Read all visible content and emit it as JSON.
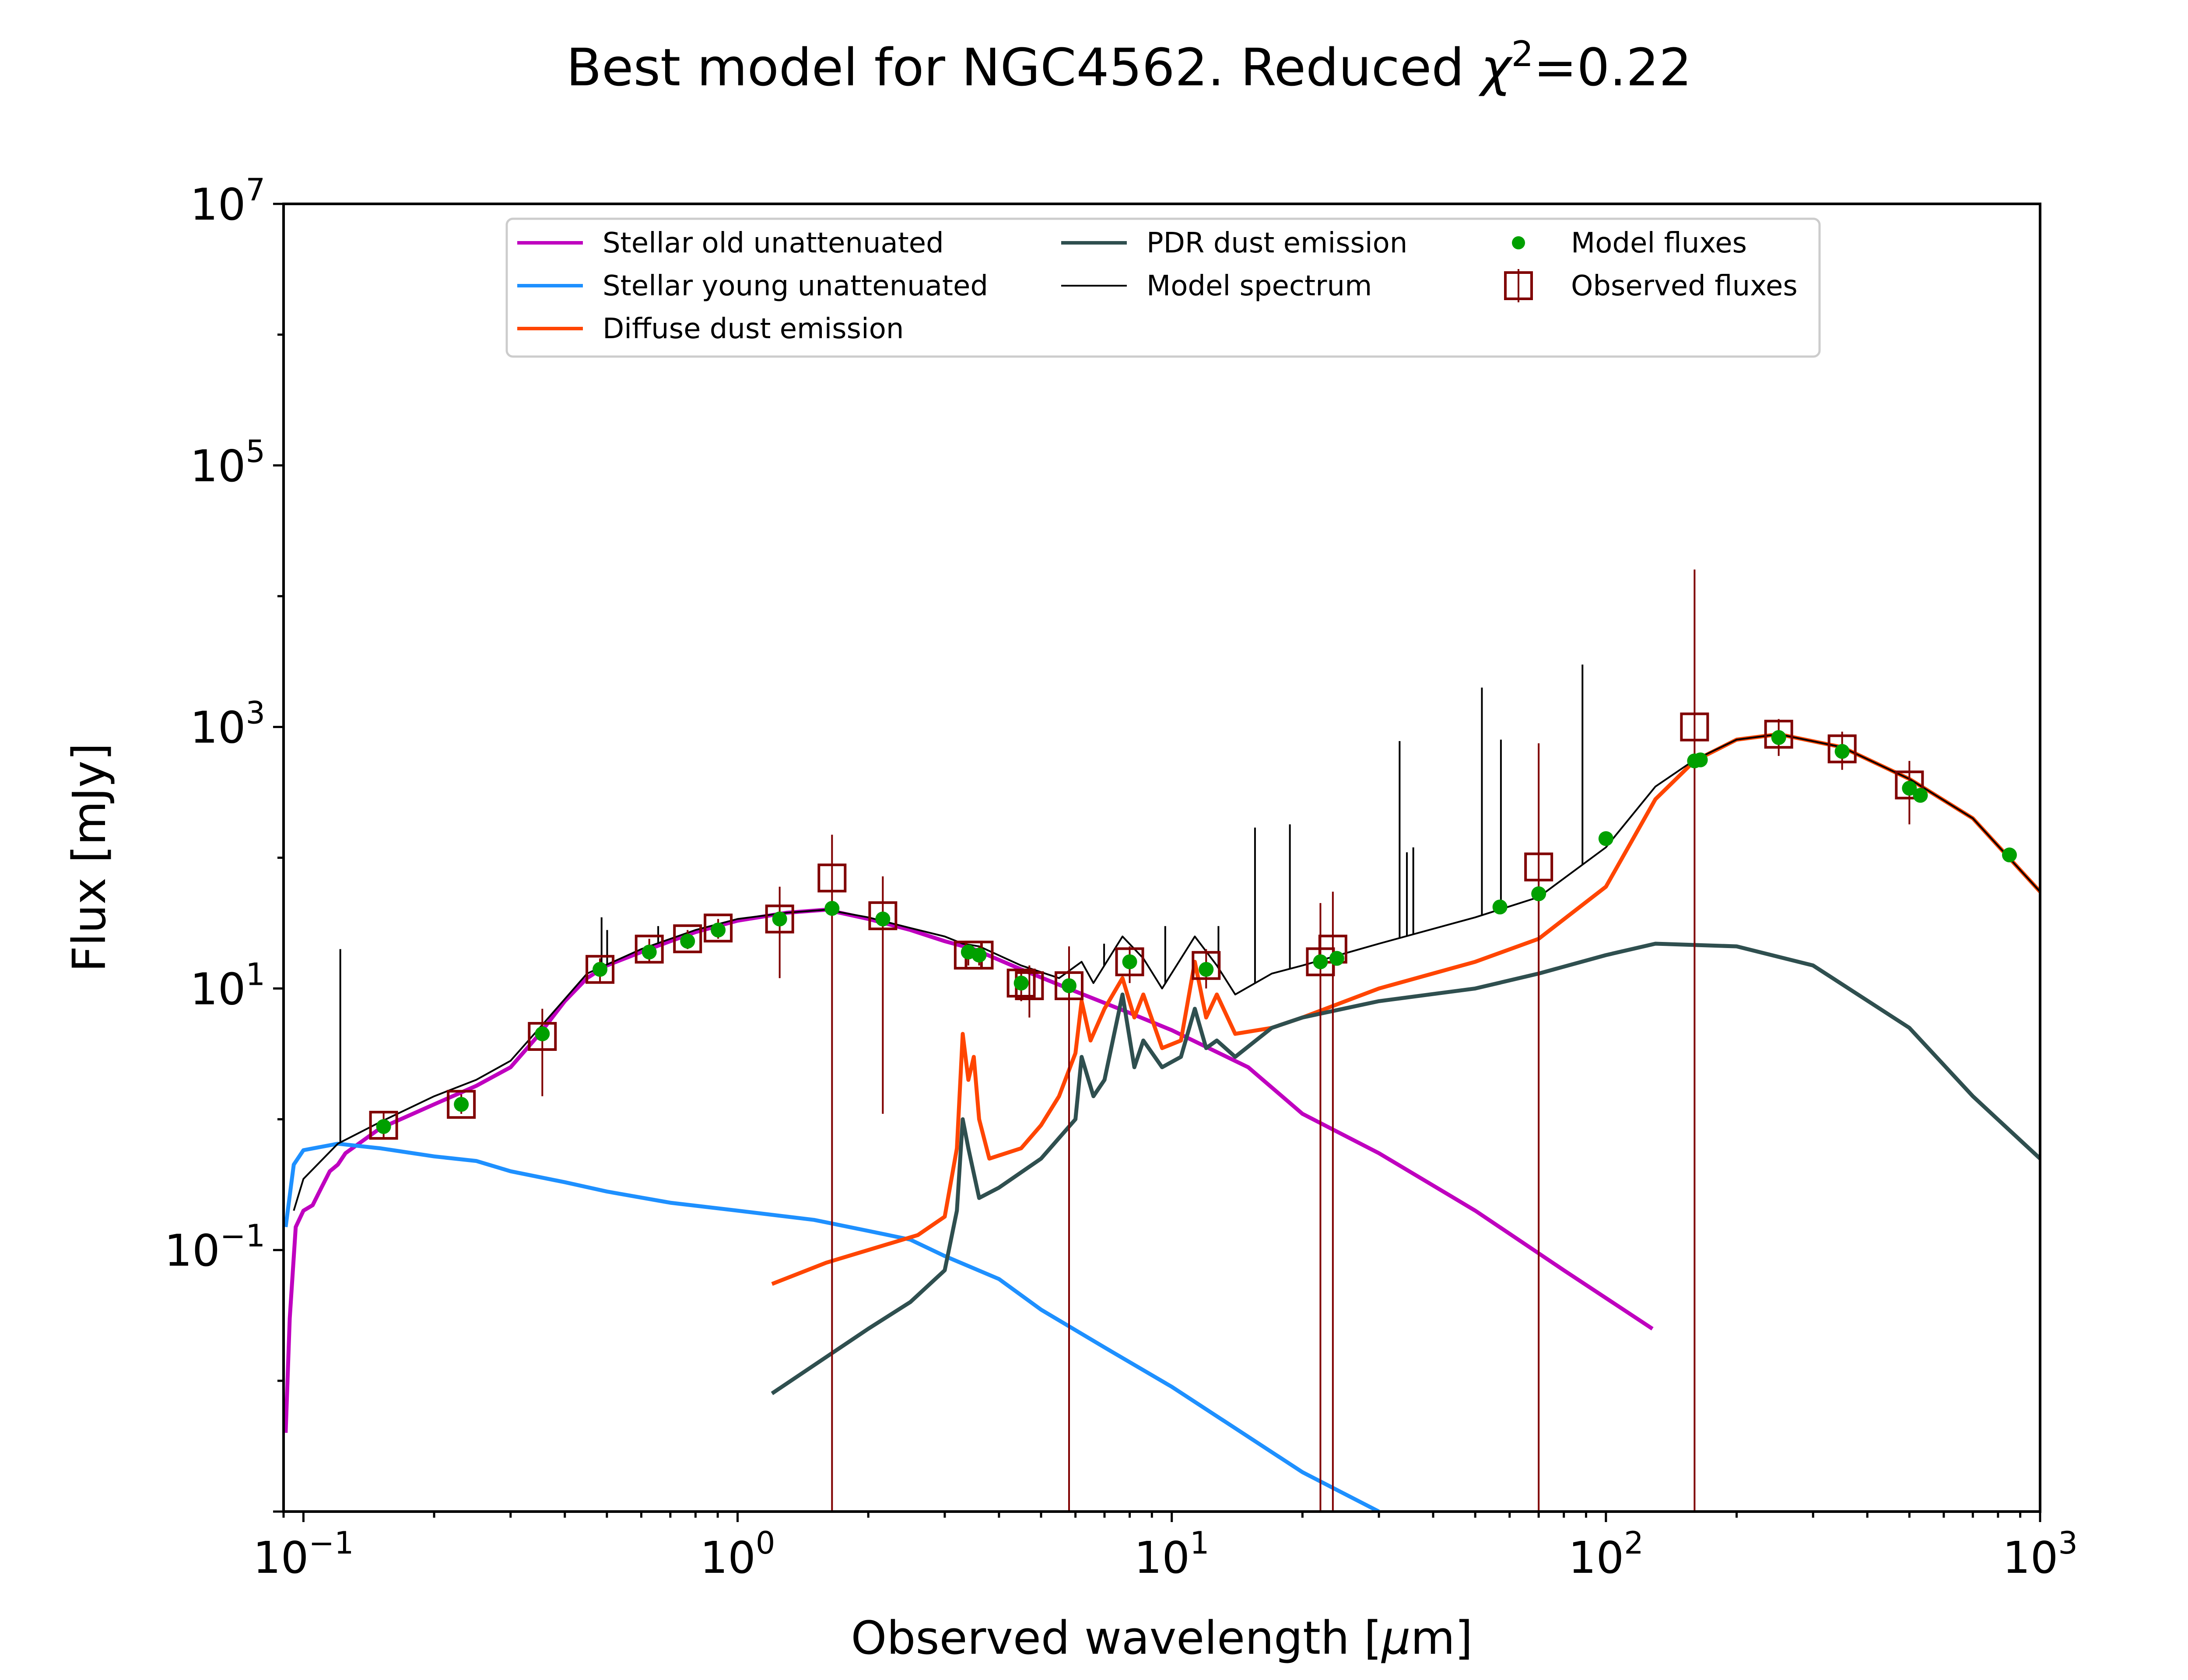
{
  "chart_data": {
    "type": "line",
    "title": "Best model for NGC4562. Reduced χ²=0.22",
    "xlabel": "Observed wavelength [μm]",
    "ylabel": "Flux [mJy]",
    "xscale": "log",
    "yscale": "log",
    "xlim": [
      0.09,
      1000
    ],
    "ylim": [
      0.001,
      10000000
    ],
    "x_ticks": [
      {
        "value": 0.1,
        "base": "10",
        "exp": "−1"
      },
      {
        "value": 1,
        "base": "10",
        "exp": "0"
      },
      {
        "value": 10,
        "base": "10",
        "exp": "1"
      },
      {
        "value": 100,
        "base": "10",
        "exp": "2"
      },
      {
        "value": 1000,
        "base": "10",
        "exp": "3"
      }
    ],
    "y_ticks": [
      {
        "value": 0.1,
        "base": "10",
        "exp": "−1"
      },
      {
        "value": 10,
        "base": "10",
        "exp": "1"
      },
      {
        "value": 1000,
        "base": "10",
        "exp": "3"
      },
      {
        "value": 100000,
        "base": "10",
        "exp": "5"
      },
      {
        "value": 10000000,
        "base": "10",
        "exp": "7"
      }
    ],
    "legend_position": "top-center",
    "series": [
      {
        "name": "Stellar old unattenuated",
        "color": "#bf00bf",
        "points": [
          [
            0.091,
            0.004
          ],
          [
            0.093,
            0.03
          ],
          [
            0.096,
            0.15
          ],
          [
            0.1,
            0.2
          ],
          [
            0.105,
            0.22
          ],
          [
            0.11,
            0.3
          ],
          [
            0.115,
            0.4
          ],
          [
            0.12,
            0.45
          ],
          [
            0.125,
            0.55
          ],
          [
            0.15,
            0.85
          ],
          [
            0.2,
            1.3
          ],
          [
            0.25,
            1.8
          ],
          [
            0.3,
            2.5
          ],
          [
            0.35,
            4.5
          ],
          [
            0.4,
            8
          ],
          [
            0.45,
            12
          ],
          [
            0.5,
            15
          ],
          [
            0.6,
            19
          ],
          [
            0.7,
            23
          ],
          [
            0.8,
            27
          ],
          [
            1.0,
            33
          ],
          [
            1.3,
            38
          ],
          [
            1.6,
            40
          ],
          [
            2.0,
            34
          ],
          [
            2.5,
            28
          ],
          [
            3.0,
            23
          ],
          [
            3.5,
            20
          ],
          [
            4.5,
            14
          ],
          [
            6,
            9.5
          ],
          [
            8,
            6.5
          ],
          [
            10,
            4.8
          ],
          [
            15,
            2.5
          ],
          [
            20,
            1.1
          ],
          [
            30,
            0.55
          ],
          [
            50,
            0.2
          ],
          [
            80,
            0.07
          ],
          [
            128,
            0.025
          ]
        ]
      },
      {
        "name": "Stellar young unattenuated",
        "color": "#1e90ff",
        "points": [
          [
            0.091,
            0.15
          ],
          [
            0.095,
            0.45
          ],
          [
            0.1,
            0.58
          ],
          [
            0.12,
            0.65
          ],
          [
            0.15,
            0.6
          ],
          [
            0.2,
            0.52
          ],
          [
            0.25,
            0.48
          ],
          [
            0.3,
            0.4
          ],
          [
            0.4,
            0.33
          ],
          [
            0.5,
            0.28
          ],
          [
            0.7,
            0.23
          ],
          [
            1.0,
            0.2
          ],
          [
            1.5,
            0.17
          ],
          [
            2.0,
            0.14
          ],
          [
            2.5,
            0.12
          ],
          [
            3.0,
            0.09
          ],
          [
            4.0,
            0.06
          ],
          [
            5.0,
            0.035
          ],
          [
            7,
            0.018
          ],
          [
            10,
            0.009
          ],
          [
            20,
            0.002
          ],
          [
            30,
            0.001
          ]
        ]
      },
      {
        "name": "Diffuse dust emission",
        "color": "#ff4500",
        "points": [
          [
            1.2,
            0.055
          ],
          [
            1.6,
            0.08
          ],
          [
            2.0,
            0.1
          ],
          [
            2.6,
            0.13
          ],
          [
            3.0,
            0.18
          ],
          [
            3.2,
            0.6
          ],
          [
            3.3,
            4.5
          ],
          [
            3.4,
            2.0
          ],
          [
            3.5,
            3.0
          ],
          [
            3.6,
            1.0
          ],
          [
            3.8,
            0.5
          ],
          [
            4.5,
            0.6
          ],
          [
            5.0,
            0.9
          ],
          [
            5.5,
            1.5
          ],
          [
            6.0,
            3.2
          ],
          [
            6.2,
            8.0
          ],
          [
            6.5,
            4.0
          ],
          [
            7.0,
            7.0
          ],
          [
            7.7,
            12
          ],
          [
            8.2,
            6.0
          ],
          [
            8.6,
            9.0
          ],
          [
            9.5,
            3.5
          ],
          [
            10.5,
            4.0
          ],
          [
            11.3,
            16
          ],
          [
            12,
            6.0
          ],
          [
            12.7,
            9.0
          ],
          [
            14,
            4.5
          ],
          [
            17,
            5.0
          ],
          [
            20,
            6.0
          ],
          [
            30,
            10
          ],
          [
            50,
            16
          ],
          [
            70,
            24
          ],
          [
            100,
            60
          ],
          [
            130,
            280
          ],
          [
            160,
            550
          ],
          [
            200,
            800
          ],
          [
            250,
            880
          ],
          [
            350,
            700
          ],
          [
            500,
            400
          ],
          [
            700,
            200
          ],
          [
            1000,
            55
          ]
        ]
      },
      {
        "name": "PDR dust emission",
        "color": "#2f4f4f",
        "points": [
          [
            1.2,
            0.008
          ],
          [
            2.0,
            0.025
          ],
          [
            2.5,
            0.04
          ],
          [
            3.0,
            0.07
          ],
          [
            3.2,
            0.2
          ],
          [
            3.3,
            1.0
          ],
          [
            3.4,
            0.6
          ],
          [
            3.6,
            0.25
          ],
          [
            4.0,
            0.3
          ],
          [
            5.0,
            0.5
          ],
          [
            6.0,
            1.0
          ],
          [
            6.2,
            3.0
          ],
          [
            6.6,
            1.5
          ],
          [
            7.0,
            2.0
          ],
          [
            7.7,
            9.0
          ],
          [
            8.2,
            2.5
          ],
          [
            8.6,
            4.0
          ],
          [
            9.5,
            2.5
          ],
          [
            10.5,
            3.0
          ],
          [
            11.3,
            7.0
          ],
          [
            12,
            3.5
          ],
          [
            12.7,
            4.0
          ],
          [
            14,
            3.0
          ],
          [
            17,
            5.0
          ],
          [
            20,
            6.0
          ],
          [
            30,
            8.0
          ],
          [
            50,
            10
          ],
          [
            70,
            13
          ],
          [
            100,
            18
          ],
          [
            130,
            22
          ],
          [
            200,
            21
          ],
          [
            300,
            15
          ],
          [
            500,
            5.0
          ],
          [
            700,
            1.5
          ],
          [
            1000,
            0.5
          ]
        ]
      },
      {
        "name": "Model spectrum",
        "color": "#000000",
        "points": [
          [
            0.095,
            0.2
          ],
          [
            0.1,
            0.35
          ],
          [
            0.12,
            0.65
          ],
          [
            0.15,
            0.95
          ],
          [
            0.2,
            1.5
          ],
          [
            0.25,
            2.0
          ],
          [
            0.3,
            2.8
          ],
          [
            0.35,
            5.0
          ],
          [
            0.45,
            13
          ],
          [
            0.6,
            20
          ],
          [
            0.8,
            28
          ],
          [
            1.0,
            34
          ],
          [
            1.3,
            38
          ],
          [
            1.6,
            40
          ],
          [
            2.0,
            35
          ],
          [
            2.5,
            29
          ],
          [
            3.0,
            25
          ],
          [
            3.3,
            22
          ],
          [
            3.6,
            21
          ],
          [
            4.5,
            15
          ],
          [
            5.5,
            12
          ],
          [
            6.2,
            16
          ],
          [
            6.6,
            11
          ],
          [
            7.7,
            25
          ],
          [
            8.6,
            17
          ],
          [
            9.5,
            10
          ],
          [
            11.3,
            25
          ],
          [
            12.7,
            15
          ],
          [
            14,
            9
          ],
          [
            17,
            13
          ],
          [
            20,
            15
          ],
          [
            30,
            22
          ],
          [
            50,
            35
          ],
          [
            70,
            50
          ],
          [
            100,
            120
          ],
          [
            130,
            350
          ],
          [
            160,
            560
          ],
          [
            200,
            800
          ],
          [
            250,
            880
          ],
          [
            350,
            700
          ],
          [
            500,
            400
          ],
          [
            700,
            200
          ],
          [
            1000,
            55
          ]
        ]
      }
    ],
    "emission_lines": [
      {
        "x": 0.1216,
        "peak": 20
      },
      {
        "x": 0.4861,
        "peak": 35
      },
      {
        "x": 0.5007,
        "peak": 28
      },
      {
        "x": 0.6563,
        "peak": 30
      },
      {
        "x": 6.985,
        "peak": 22
      },
      {
        "x": 9.66,
        "peak": 30
      },
      {
        "x": 12.81,
        "peak": 30
      },
      {
        "x": 15.55,
        "peak": 170
      },
      {
        "x": 18.71,
        "peak": 180
      },
      {
        "x": 33.48,
        "peak": 780
      },
      {
        "x": 34.8,
        "peak": 110
      },
      {
        "x": 36.0,
        "peak": 120
      },
      {
        "x": 51.8,
        "peak": 2000
      },
      {
        "x": 57.3,
        "peak": 800
      },
      {
        "x": 88.3,
        "peak": 3000
      }
    ],
    "model_fluxes": {
      "name": "Model fluxes",
      "color": "#00a000",
      "points": [
        [
          0.153,
          0.88
        ],
        [
          0.231,
          1.3
        ],
        [
          0.355,
          4.5
        ],
        [
          0.482,
          14
        ],
        [
          0.626,
          19
        ],
        [
          0.767,
          23
        ],
        [
          0.902,
          28
        ],
        [
          1.25,
          34
        ],
        [
          1.65,
          41
        ],
        [
          2.16,
          34
        ],
        [
          3.4,
          19
        ],
        [
          3.6,
          18
        ],
        [
          4.5,
          11
        ],
        [
          5.8,
          10.5
        ],
        [
          8.0,
          16
        ],
        [
          12,
          14
        ],
        [
          22,
          16
        ],
        [
          24,
          17
        ],
        [
          57,
          42
        ],
        [
          70,
          53
        ],
        [
          100,
          140
        ],
        [
          160,
          550
        ],
        [
          165,
          560
        ],
        [
          250,
          830
        ],
        [
          350,
          650
        ],
        [
          500,
          340
        ],
        [
          530,
          300
        ],
        [
          850,
          105
        ]
      ]
    },
    "observed_fluxes": {
      "name": "Observed fluxes",
      "color": "#800000",
      "points": [
        {
          "x": 0.153,
          "y": 0.9,
          "lo": 0.7,
          "hi": 1.15
        },
        {
          "x": 0.231,
          "y": 1.3,
          "lo": 1.1,
          "hi": 1.55
        },
        {
          "x": 0.355,
          "y": 4.3,
          "lo": 1.5,
          "hi": 7.0
        },
        {
          "x": 0.482,
          "y": 14,
          "lo": 11,
          "hi": 17
        },
        {
          "x": 0.626,
          "y": 20,
          "lo": 16,
          "hi": 24
        },
        {
          "x": 0.767,
          "y": 24,
          "lo": 20,
          "hi": 28
        },
        {
          "x": 0.902,
          "y": 29,
          "lo": 24,
          "hi": 34
        },
        {
          "x": 1.25,
          "y": 34,
          "lo": 12,
          "hi": 60
        },
        {
          "x": 1.65,
          "y": 70,
          "lo": 0.001,
          "hi": 150
        },
        {
          "x": 2.16,
          "y": 36,
          "lo": 1.1,
          "hi": 72
        },
        {
          "x": 3.4,
          "y": 18,
          "lo": 15,
          "hi": 21
        },
        {
          "x": 3.6,
          "y": 18,
          "lo": 15,
          "hi": 21
        },
        {
          "x": 4.5,
          "y": 11,
          "lo": 8,
          "hi": 14
        },
        {
          "x": 4.7,
          "y": 10.5,
          "lo": 6,
          "hi": 15
        },
        {
          "x": 5.8,
          "y": 10.5,
          "lo": 0.001,
          "hi": 21
        },
        {
          "x": 8.0,
          "y": 16,
          "lo": 11,
          "hi": 21
        },
        {
          "x": 12,
          "y": 15,
          "lo": 10,
          "hi": 20
        },
        {
          "x": 22,
          "y": 16,
          "lo": 0.001,
          "hi": 45
        },
        {
          "x": 23.5,
          "y": 20,
          "lo": 0.001,
          "hi": 55
        },
        {
          "x": 70,
          "y": 85,
          "lo": 0.001,
          "hi": 750
        },
        {
          "x": 160,
          "y": 1000,
          "lo": 0.001,
          "hi": 16000
        },
        {
          "x": 250,
          "y": 880,
          "lo": 600,
          "hi": 1150
        },
        {
          "x": 350,
          "y": 680,
          "lo": 470,
          "hi": 920
        },
        {
          "x": 500,
          "y": 360,
          "lo": 180,
          "hi": 550
        }
      ]
    }
  }
}
